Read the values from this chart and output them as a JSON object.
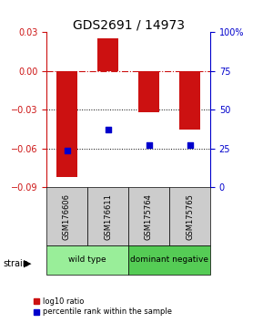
{
  "title": "GDS2691 / 14973",
  "samples": [
    "GSM176606",
    "GSM176611",
    "GSM175764",
    "GSM175765"
  ],
  "log10_ratio": [
    -0.082,
    0.025,
    -0.032,
    -0.045
  ],
  "percentile_rank": [
    24,
    37,
    27,
    27
  ],
  "ylim_left": [
    -0.09,
    0.03
  ],
  "ylim_right": [
    0,
    100
  ],
  "bar_color": "#cc1111",
  "point_color": "#0000cc",
  "hline_0_color": "#cc1111",
  "hline_dotted_color": "#000000",
  "groups": [
    {
      "label": "wild type",
      "samples": [
        0,
        1
      ],
      "color": "#99ee99"
    },
    {
      "label": "dominant negative",
      "samples": [
        2,
        3
      ],
      "color": "#55cc55"
    }
  ],
  "sample_box_color": "#cccccc",
  "title_fontsize": 10,
  "tick_fontsize": 7,
  "bar_width": 0.5
}
